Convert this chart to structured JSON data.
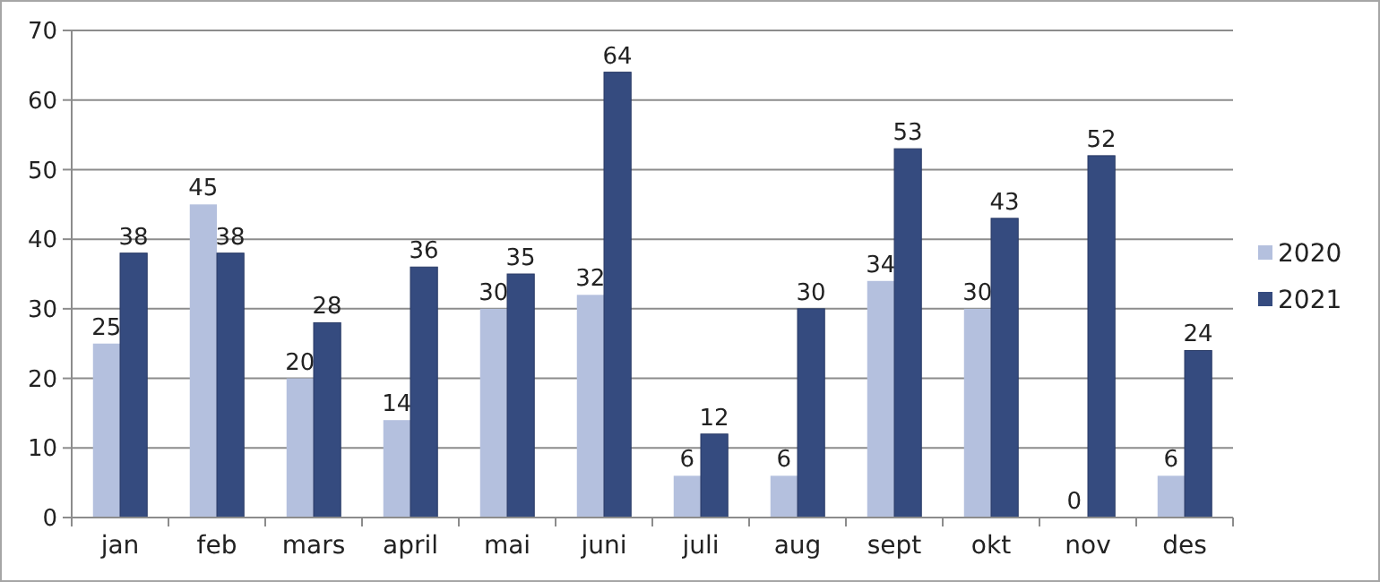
{
  "chart_data": {
    "type": "bar",
    "categories": [
      "jan",
      "feb",
      "mars",
      "april",
      "mai",
      "juni",
      "juli",
      "aug",
      "sept",
      "okt",
      "nov",
      "des"
    ],
    "series": [
      {
        "name": "2020",
        "color": "#b4c0de",
        "values": [
          25,
          45,
          20,
          14,
          30,
          32,
          6,
          6,
          34,
          30,
          0,
          6
        ]
      },
      {
        "name": "2021",
        "color": "#354b7f",
        "values": [
          38,
          38,
          28,
          36,
          35,
          64,
          12,
          30,
          53,
          43,
          52,
          24
        ]
      }
    ],
    "ylim": [
      0,
      70
    ],
    "yticks": [
      0,
      10,
      20,
      30,
      40,
      50,
      60,
      70
    ],
    "grid": "y",
    "legend": "right",
    "data_labels": true
  }
}
